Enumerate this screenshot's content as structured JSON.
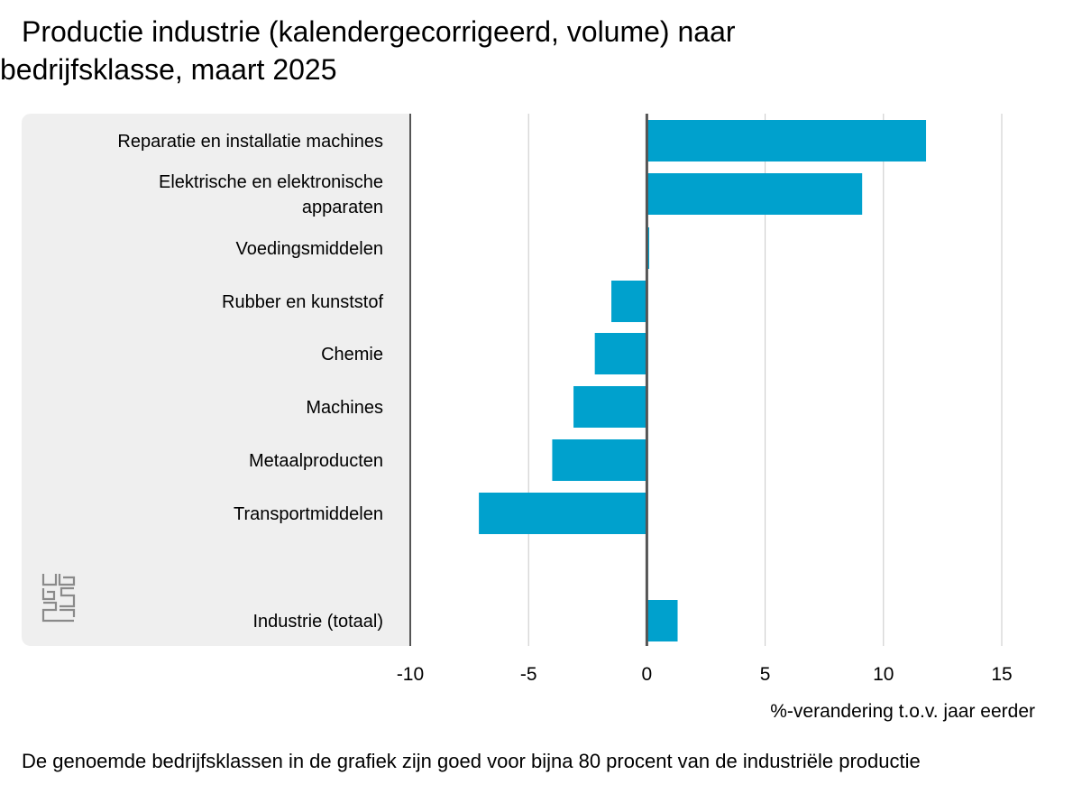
{
  "title": "Productie industrie (kalendergecorrigeerd, volume) naar bedrijfsklasse, maart 2025",
  "note": "De genoemde bedrijfsklassen in de grafiek zijn goed voor bijna 80 procent van de industriële productie",
  "logo": {
    "icon": "cbs-logo-icon",
    "text": "cbs"
  },
  "colors": {
    "bar": "#00a1cd",
    "panel": "#efefef",
    "grid": "#c8c8c8",
    "axis": "#555555"
  },
  "chart_data": {
    "type": "bar",
    "orientation": "horizontal",
    "title": "Productie industrie (kalendergecorrigeerd, volume) naar bedrijfsklasse, maart 2025",
    "xlabel": "%-verandering t.o.v. jaar eerder",
    "ylabel": "",
    "xlim": [
      -10,
      15
    ],
    "xticks": [
      -10,
      -5,
      0,
      5,
      10,
      15
    ],
    "grid": true,
    "categories": [
      [
        "Reparatie en installatie machines"
      ],
      [
        "Elektrische en elektronische",
        "apparaten"
      ],
      [
        "Voedingsmiddelen"
      ],
      [
        "Rubber en kunststof"
      ],
      [
        "Chemie"
      ],
      [
        "Machines"
      ],
      [
        "Metaalproducten"
      ],
      [
        "Transportmiddelen"
      ],
      [],
      [
        "Industrie (totaal)"
      ]
    ],
    "values": [
      11.8,
      9.1,
      0.1,
      -1.5,
      -2.2,
      -3.1,
      -4.0,
      -7.1,
      null,
      1.3
    ]
  }
}
